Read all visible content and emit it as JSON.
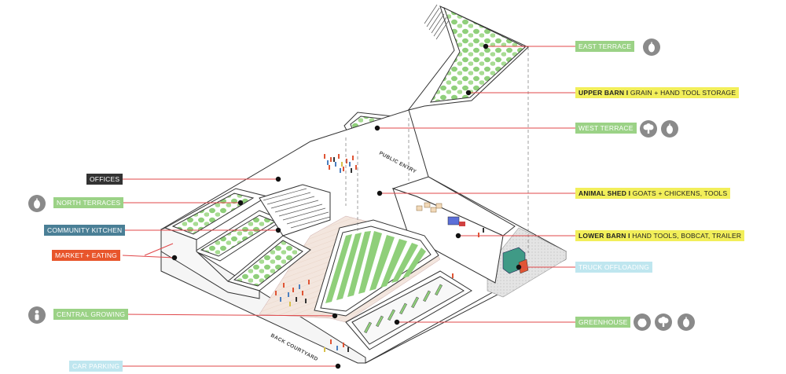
{
  "labels": {
    "east_terrace": "EAST TERRACE",
    "upper_barn_bold": "UPPER BARN I",
    "upper_barn_rest": "GRAIN + HAND TOOL STORAGE",
    "west_terrace": "WEST TERRACE",
    "offices": "OFFICES",
    "north_terraces": "NORTH TERRACES",
    "community_kitchen": "COMMUNITY KITCHEN",
    "market_eating": "MARKET + EATING",
    "animal_shed_bold": "ANIMAL SHED I",
    "animal_shed_rest": "GOATS + CHICKENS, TOOLS",
    "lower_barn_bold": "LOWER BARN I",
    "lower_barn_rest": "HAND TOOLS, BOBCAT, TRAILER",
    "truck_offloading": "TRUCK OFFLOADING",
    "central_growing": "CENTRAL GROWING",
    "greenhouse": "GREENHOUSE",
    "car_parking": "CAR PARKING"
  },
  "plan_text": {
    "public_entry": "PUBLIC ENTRY",
    "back_courtyard": "BACK COURTYARD"
  },
  "icons": {
    "east_terrace": [
      "produce-icon"
    ],
    "west_terrace": [
      "broccoli-icon",
      "produce-icon"
    ],
    "north_terraces": [
      "produce-icon"
    ],
    "central_growing": [
      "person-icon"
    ],
    "greenhouse": [
      "tomato-icon",
      "broccoli-icon",
      "produce-icon"
    ]
  },
  "colors": {
    "green": "#9bd286",
    "yellow": "#f2ef5a",
    "dark": "#333333",
    "blue": "#4a7f96",
    "orange": "#e8552b",
    "light_blue": "#bfe6ef",
    "leader_line": "#e0474a",
    "icon_gray": "#8a8a8a"
  }
}
